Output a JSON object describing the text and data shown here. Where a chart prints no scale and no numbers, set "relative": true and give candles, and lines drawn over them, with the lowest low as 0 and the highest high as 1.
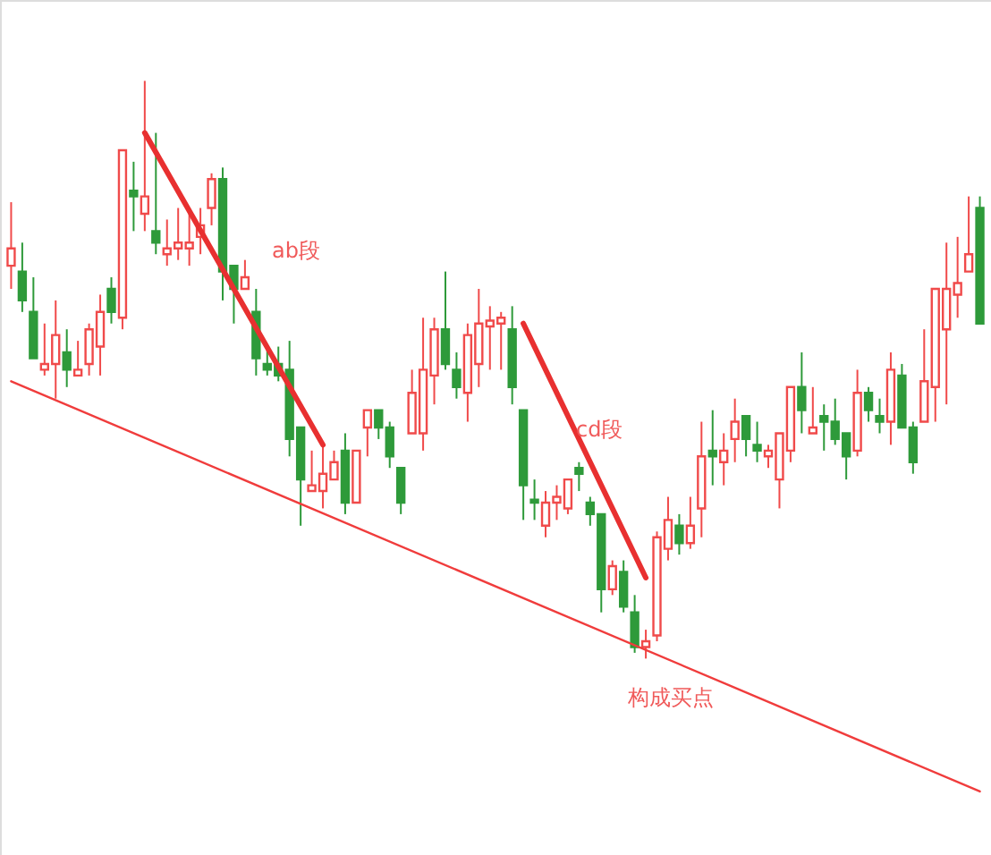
{
  "chart_data": {
    "type": "candlestick",
    "relative": true,
    "categories": [
      null,
      null,
      null,
      null,
      null,
      null,
      null,
      null,
      null,
      null,
      null,
      null,
      null,
      null,
      null,
      null,
      null,
      null,
      null,
      null,
      null,
      null,
      null,
      null,
      null,
      null,
      null,
      null,
      null,
      null,
      null,
      null,
      null,
      null,
      null,
      null,
      null,
      null,
      null,
      null,
      null,
      null,
      null,
      null,
      null,
      null,
      null,
      null,
      null,
      null,
      null,
      null,
      null,
      null,
      null,
      null,
      null,
      null,
      null,
      null,
      null,
      null,
      null,
      null,
      null,
      null,
      null,
      null,
      null,
      null,
      null,
      null,
      null,
      null,
      null,
      null,
      null,
      null,
      null,
      null,
      null,
      null,
      null,
      null,
      null,
      null,
      null,
      null
    ],
    "ohlc": [
      [
        0.68,
        0.79,
        0.64,
        0.71
      ],
      [
        0.67,
        0.72,
        0.6,
        0.62
      ],
      [
        0.6,
        0.66,
        0.52,
        0.52
      ],
      [
        0.5,
        0.58,
        0.49,
        0.51
      ],
      [
        0.51,
        0.62,
        0.45,
        0.56
      ],
      [
        0.53,
        0.57,
        0.47,
        0.5
      ],
      [
        0.49,
        0.55,
        0.49,
        0.5
      ],
      [
        0.51,
        0.58,
        0.49,
        0.57
      ],
      [
        0.54,
        0.63,
        0.49,
        0.6
      ],
      [
        0.64,
        0.66,
        0.58,
        0.6
      ],
      [
        0.59,
        0.88,
        0.57,
        0.88
      ],
      [
        0.81,
        0.86,
        0.74,
        0.8
      ],
      [
        0.77,
        1.0,
        0.74,
        0.8
      ],
      [
        0.74,
        0.91,
        0.7,
        0.72
      ],
      [
        0.7,
        0.76,
        0.68,
        0.71
      ],
      [
        0.71,
        0.78,
        0.69,
        0.72
      ],
      [
        0.71,
        0.78,
        0.68,
        0.72
      ],
      [
        0.73,
        0.78,
        0.7,
        0.75
      ],
      [
        0.78,
        0.84,
        0.75,
        0.83
      ],
      [
        0.83,
        0.85,
        0.62,
        0.67
      ],
      [
        0.68,
        0.68,
        0.58,
        0.64
      ],
      [
        0.64,
        0.69,
        0.64,
        0.66
      ],
      [
        0.6,
        0.64,
        0.49,
        0.52
      ],
      [
        0.51,
        0.54,
        0.49,
        0.5
      ],
      [
        0.51,
        0.54,
        0.48,
        0.49
      ],
      [
        0.5,
        0.55,
        0.35,
        0.38
      ],
      [
        0.4,
        0.4,
        0.23,
        0.31
      ],
      [
        0.29,
        0.36,
        0.29,
        0.3
      ],
      [
        0.29,
        0.37,
        0.26,
        0.32
      ],
      [
        0.31,
        0.36,
        0.31,
        0.34
      ],
      [
        0.36,
        0.39,
        0.25,
        0.27
      ],
      [
        0.27,
        0.36,
        0.27,
        0.36
      ],
      [
        0.4,
        0.43,
        0.35,
        0.43
      ],
      [
        0.43,
        0.43,
        0.38,
        0.4
      ],
      [
        0.4,
        0.41,
        0.33,
        0.35
      ],
      [
        0.33,
        0.33,
        0.25,
        0.27
      ],
      [
        0.39,
        0.5,
        0.39,
        0.46
      ],
      [
        0.39,
        0.59,
        0.36,
        0.5
      ],
      [
        0.49,
        0.59,
        0.44,
        0.57
      ],
      [
        0.57,
        0.67,
        0.5,
        0.51
      ],
      [
        0.5,
        0.53,
        0.45,
        0.47
      ],
      [
        0.46,
        0.58,
        0.41,
        0.56
      ],
      [
        0.51,
        0.64,
        0.47,
        0.58
      ],
      [
        0.575,
        0.61,
        0.5,
        0.585
      ],
      [
        0.58,
        0.6,
        0.5,
        0.59
      ],
      [
        0.57,
        0.61,
        0.44,
        0.47
      ],
      [
        0.43,
        0.43,
        0.24,
        0.3
      ],
      [
        0.275,
        0.31,
        0.24,
        0.27
      ],
      [
        0.23,
        0.29,
        0.21,
        0.27
      ],
      [
        0.27,
        0.3,
        0.24,
        0.28
      ],
      [
        0.26,
        0.31,
        0.25,
        0.31
      ],
      [
        0.33,
        0.34,
        0.29,
        0.32
      ],
      [
        0.27,
        0.28,
        0.23,
        0.25
      ],
      [
        0.25,
        0.25,
        0.08,
        0.12
      ],
      [
        0.12,
        0.17,
        0.11,
        0.16
      ],
      [
        0.15,
        0.17,
        0.08,
        0.09
      ],
      [
        0.08,
        0.11,
        0.01,
        0.02
      ],
      [
        0.02,
        0.05,
        0.0,
        0.03
      ],
      [
        0.04,
        0.22,
        0.03,
        0.21
      ],
      [
        0.19,
        0.28,
        0.17,
        0.24
      ],
      [
        0.23,
        0.25,
        0.18,
        0.2
      ],
      [
        0.2,
        0.28,
        0.19,
        0.23
      ],
      [
        0.26,
        0.41,
        0.21,
        0.35
      ],
      [
        0.36,
        0.43,
        0.3,
        0.35
      ],
      [
        0.34,
        0.39,
        0.3,
        0.36
      ],
      [
        0.38,
        0.45,
        0.34,
        0.41
      ],
      [
        0.42,
        0.42,
        0.35,
        0.38
      ],
      [
        0.37,
        0.41,
        0.34,
        0.36
      ],
      [
        0.35,
        0.37,
        0.33,
        0.36
      ],
      [
        0.31,
        0.39,
        0.26,
        0.39
      ],
      [
        0.36,
        0.47,
        0.34,
        0.47
      ],
      [
        0.47,
        0.53,
        0.39,
        0.43
      ],
      [
        0.39,
        0.47,
        0.39,
        0.4
      ],
      [
        0.42,
        0.44,
        0.36,
        0.41
      ],
      [
        0.41,
        0.45,
        0.37,
        0.38
      ],
      [
        0.39,
        0.39,
        0.31,
        0.35
      ],
      [
        0.36,
        0.5,
        0.35,
        0.46
      ],
      [
        0.46,
        0.47,
        0.41,
        0.43
      ],
      [
        0.42,
        0.45,
        0.39,
        0.41
      ],
      [
        0.41,
        0.53,
        0.37,
        0.5
      ],
      [
        0.49,
        0.51,
        0.4,
        0.4
      ],
      [
        0.4,
        0.41,
        0.32,
        0.34
      ],
      [
        0.41,
        0.57,
        0.41,
        0.48
      ],
      [
        0.47,
        0.64,
        0.41,
        0.64
      ],
      [
        0.57,
        0.72,
        0.44,
        0.64
      ],
      [
        0.63,
        0.73,
        0.59,
        0.65
      ],
      [
        0.67,
        0.8,
        0.67,
        0.7
      ],
      [
        0.78,
        0.8,
        0.58,
        0.58
      ]
    ],
    "colors": [
      "#f04a4a",
      "#2e9a3a",
      "#2e9a3a",
      "#f04a4a",
      "#f04a4a",
      "#2e9a3a",
      "#f04a4a",
      "#f04a4a",
      "#f04a4a",
      "#2e9a3a",
      "#f04a4a",
      "#2e9a3a",
      "#f04a4a",
      "#2e9a3a",
      "#f04a4a",
      "#f04a4a",
      "#f04a4a",
      "#f04a4a",
      "#f04a4a",
      "#2e9a3a",
      "#2e9a3a",
      "#f04a4a",
      "#2e9a3a",
      "#2e9a3a",
      "#2e9a3a",
      "#2e9a3a",
      "#2e9a3a",
      "#f04a4a",
      "#f04a4a",
      "#f04a4a",
      "#2e9a3a",
      "#f04a4a",
      "#f04a4a",
      "#2e9a3a",
      "#2e9a3a",
      "#2e9a3a",
      "#f04a4a",
      "#f04a4a",
      "#f04a4a",
      "#2e9a3a",
      "#2e9a3a",
      "#f04a4a",
      "#f04a4a",
      "#f04a4a",
      "#f04a4a",
      "#2e9a3a",
      "#2e9a3a",
      "#2e9a3a",
      "#f04a4a",
      "#f04a4a",
      "#f04a4a",
      "#2e9a3a",
      "#2e9a3a",
      "#2e9a3a",
      "#f04a4a",
      "#2e9a3a",
      "#2e9a3a",
      "#f04a4a",
      "#f04a4a",
      "#f04a4a",
      "#2e9a3a",
      "#f04a4a",
      "#f04a4a",
      "#2e9a3a",
      "#f04a4a",
      "#f04a4a",
      "#2e9a3a",
      "#2e9a3a",
      "#f04a4a",
      "#f04a4a",
      "#f04a4a",
      "#2e9a3a",
      "#f04a4a",
      "#2e9a3a",
      "#2e9a3a",
      "#2e9a3a",
      "#f04a4a",
      "#2e9a3a",
      "#2e9a3a",
      "#f04a4a",
      "#2e9a3a",
      "#2e9a3a",
      "#f04a4a",
      "#f04a4a",
      "#f04a4a",
      "#f04a4a",
      "#f04a4a",
      "#2e9a3a"
    ],
    "series": [
      {
        "type": "line",
        "color": "#f03c3c",
        "values": [
          0.48,
          null,
          null,
          null,
          null,
          null,
          null,
          null,
          null,
          null,
          null,
          null,
          null,
          null,
          null,
          null,
          null,
          null,
          null,
          null,
          null,
          null,
          null,
          null,
          null,
          null,
          null,
          null,
          null,
          null,
          null,
          null,
          null,
          null,
          null,
          null,
          null,
          null,
          null,
          null,
          null,
          null,
          null,
          null,
          null,
          null,
          null,
          null,
          null,
          null,
          null,
          null,
          null,
          null,
          null,
          null,
          null,
          null,
          null,
          null,
          null,
          null,
          null,
          null,
          null,
          null,
          null,
          null,
          null,
          null,
          null,
          null,
          null,
          null,
          null,
          null,
          null,
          null,
          null,
          null,
          null,
          null,
          null,
          null,
          null,
          null,
          null,
          -0.23
        ]
      },
      {
        "type": "line",
        "color": "#e83030",
        "values": [
          null,
          null,
          null,
          null,
          null,
          null,
          null,
          null,
          null,
          null,
          null,
          null,
          0.91,
          null,
          null,
          null,
          null,
          null,
          null,
          null,
          null,
          null,
          null,
          null,
          null,
          null,
          null,
          null,
          0.37,
          null,
          null,
          null,
          null,
          null,
          null,
          null,
          null,
          null,
          null,
          null,
          null,
          null,
          null,
          null,
          null,
          null,
          null,
          null,
          null,
          null,
          null,
          null,
          null,
          null,
          null,
          null,
          null,
          null,
          null,
          null,
          null,
          null,
          null,
          null,
          null,
          null,
          null,
          null,
          null,
          null,
          null,
          null,
          null,
          null,
          null,
          null,
          null,
          null,
          null,
          null,
          null,
          null,
          null,
          null,
          null,
          null,
          null,
          null
        ]
      },
      {
        "type": "line",
        "color": "#e83030",
        "values": [
          null,
          null,
          null,
          null,
          null,
          null,
          null,
          null,
          null,
          null,
          null,
          null,
          null,
          null,
          null,
          null,
          null,
          null,
          null,
          null,
          null,
          null,
          null,
          null,
          null,
          null,
          null,
          null,
          null,
          null,
          null,
          null,
          null,
          null,
          null,
          null,
          null,
          null,
          null,
          null,
          null,
          null,
          null,
          null,
          null,
          null,
          0.58,
          null,
          null,
          null,
          null,
          null,
          null,
          null,
          null,
          null,
          null,
          0.14,
          null,
          null,
          null,
          null,
          null,
          null,
          null,
          null,
          null,
          null,
          null,
          null,
          null,
          null,
          null,
          null,
          null,
          null,
          null,
          null,
          null,
          null,
          null,
          null,
          null,
          null,
          null,
          null,
          null,
          null
        ]
      }
    ],
    "annotations": [
      "ab段",
      "cd段",
      "构成买点"
    ]
  }
}
